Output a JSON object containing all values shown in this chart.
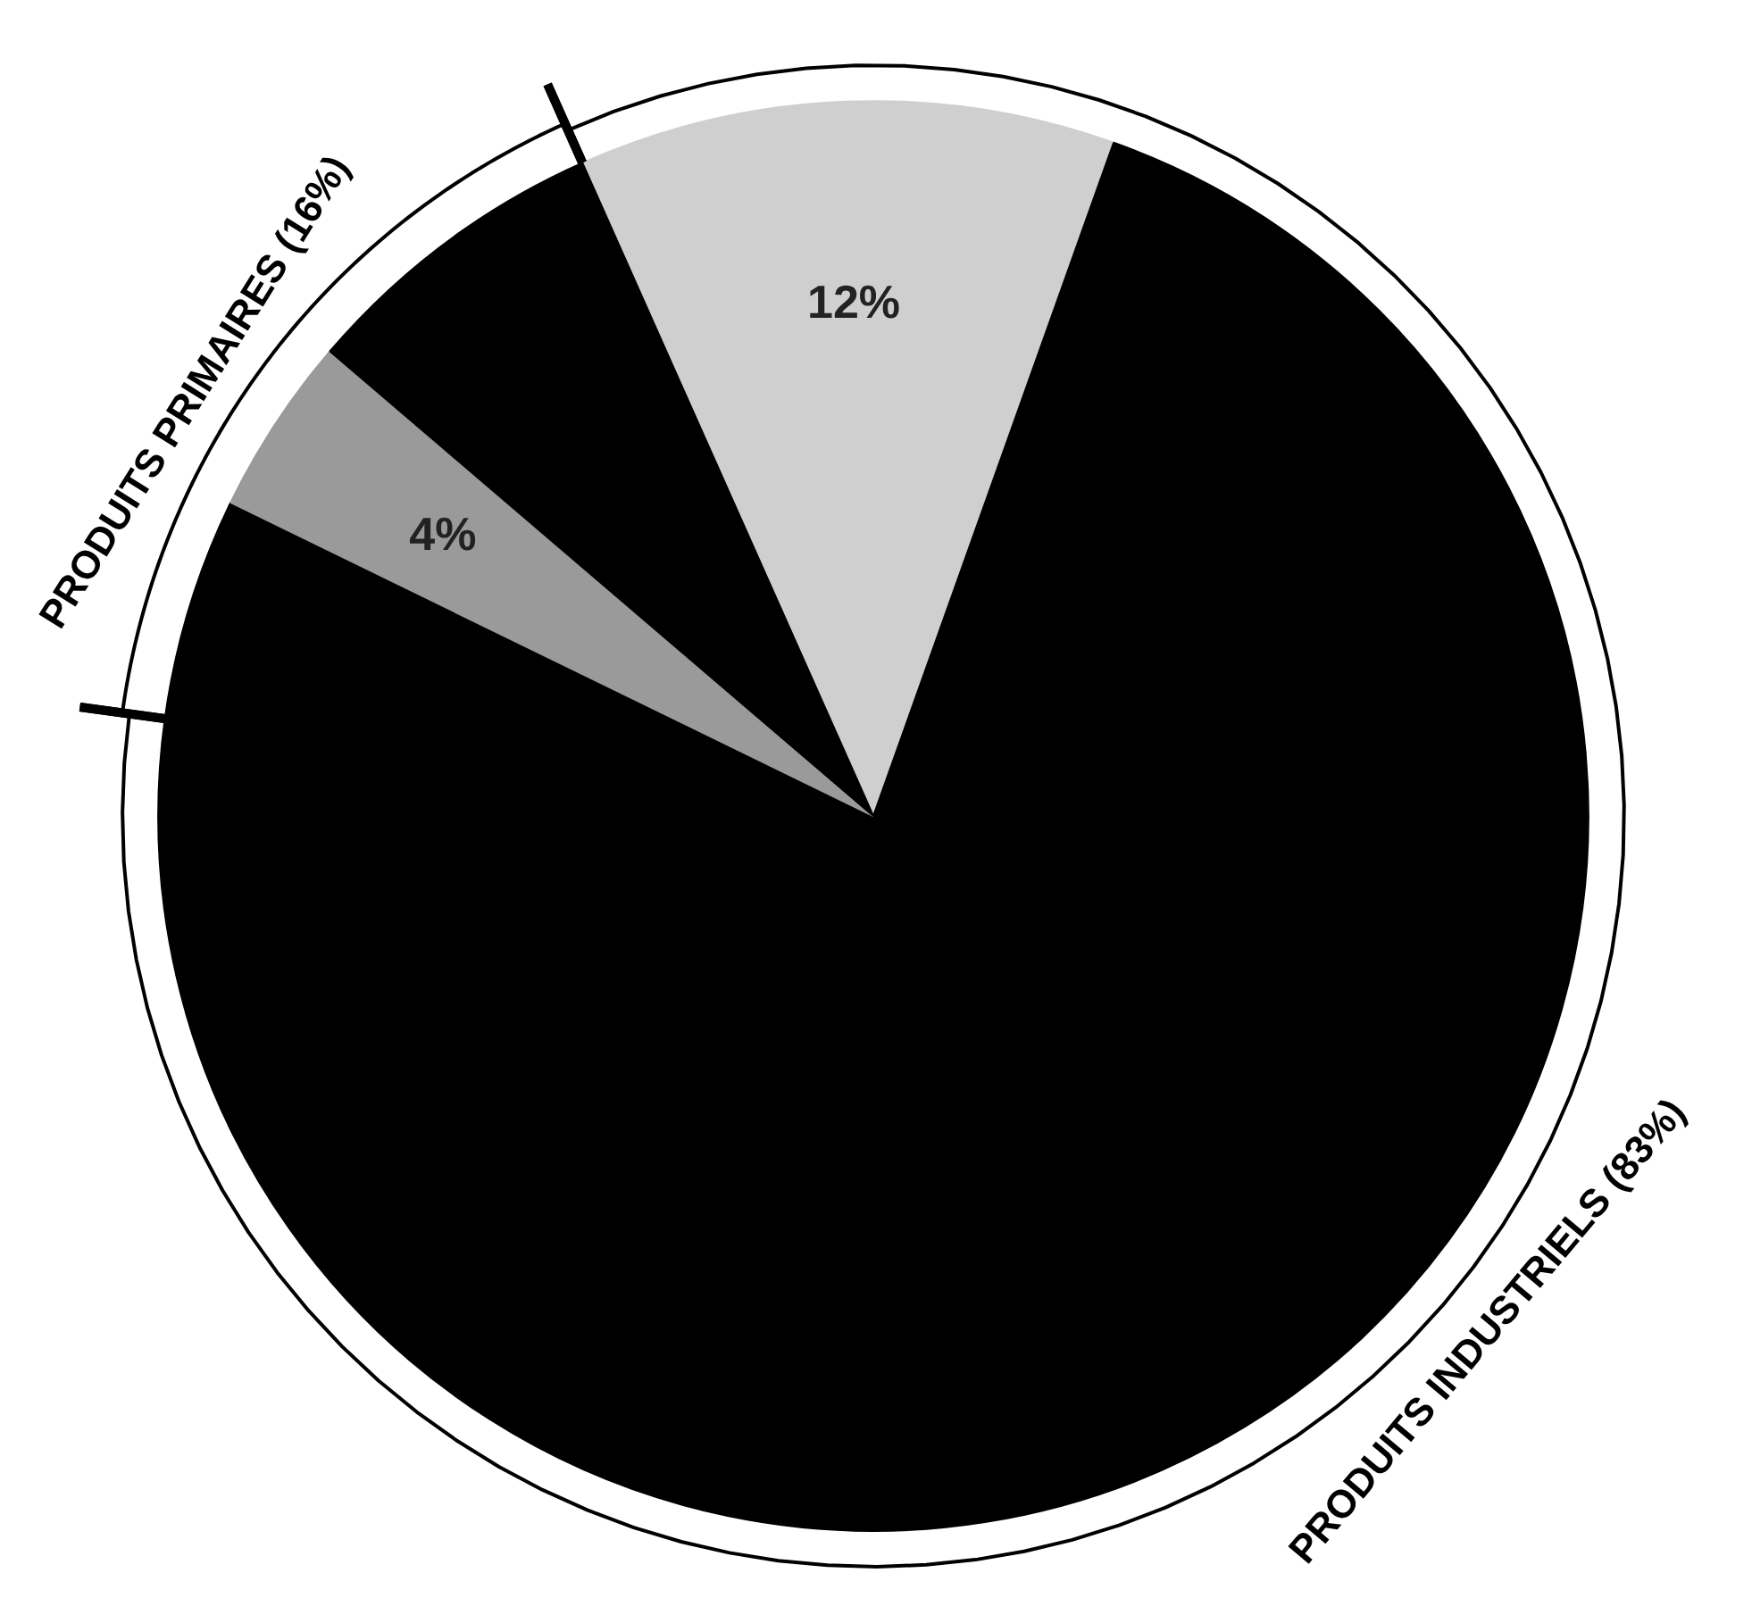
{
  "chart_data": {
    "type": "pie",
    "categories": [
      null,
      null,
      null,
      null,
      null
    ],
    "values": [
      12,
      71,
      5,
      4,
      7
    ],
    "colors": [
      "#cfcfcf",
      "#000000",
      "#000000",
      "#9a9a9a",
      "#000000"
    ],
    "value_labels": [
      "12%",
      null,
      null,
      "4%",
      null
    ],
    "annotations": [
      "PRODUITS PRIMAIRES (16%)",
      "PRODUITS INDUSTRIELS (83%)"
    ]
  }
}
